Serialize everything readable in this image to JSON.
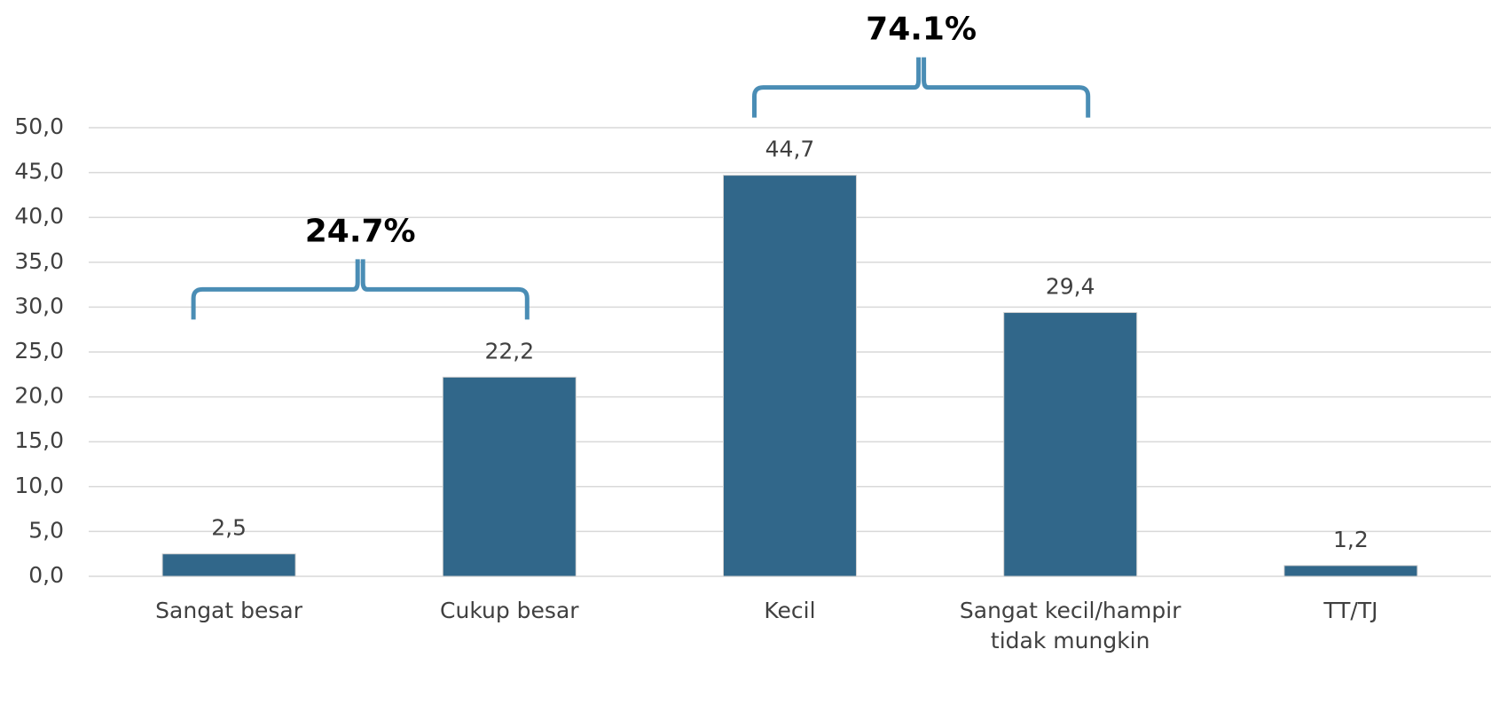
{
  "chart_data": {
    "type": "bar",
    "categories": [
      "Sangat besar",
      "Cukup besar",
      "Kecil",
      "Sangat kecil/hampir tidak mungkin",
      "TT/TJ"
    ],
    "values": [
      2.5,
      22.2,
      44.7,
      29.4,
      1.2
    ],
    "value_labels": [
      "2,5",
      "22,2",
      "44,7",
      "29,4",
      "1,2"
    ],
    "color": "#31678a",
    "ylim": [
      0,
      50
    ],
    "yticks": [
      {
        "value": 0,
        "label": "0,0"
      },
      {
        "value": 5,
        "label": "5,0"
      },
      {
        "value": 10,
        "label": "10,0"
      },
      {
        "value": 15,
        "label": "15,0"
      },
      {
        "value": 20,
        "label": "20,0"
      },
      {
        "value": 25,
        "label": "25,0"
      },
      {
        "value": 30,
        "label": "30,0"
      },
      {
        "value": 35,
        "label": "35,0"
      },
      {
        "value": 40,
        "label": "40,0"
      },
      {
        "value": 45,
        "label": "45,0"
      },
      {
        "value": 50,
        "label": "50,0"
      }
    ],
    "grid": true,
    "annotations": [
      "24.7%",
      "74.1%"
    ]
  }
}
